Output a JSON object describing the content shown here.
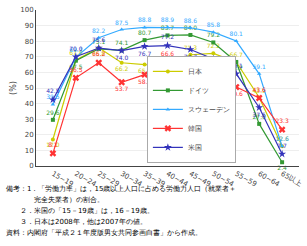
{
  "chart_data": {
    "type": "line",
    "y_label": "(%)",
    "categories": [
      "15~19",
      "20~24",
      "25~29",
      "30~34",
      "35~39",
      "40~44",
      "45~49",
      "50~54",
      "55~59",
      "60~64",
      "65以上"
    ],
    "series": [
      {
        "name": "日本",
        "color": "#cccc00",
        "marker": "circle",
        "values": [
          17.0,
          67.8,
          75.8,
          66.2,
          65.0,
          64.9,
          71.3,
          72.2,
          66.7,
          43.9,
          12.6
        ],
        "value_labels": [
          "17.0",
          "67.8",
          "75.8",
          "66.2",
          "65.0",
          "64.9",
          "71.3",
          "72.2",
          "66.7",
          "43.9",
          "12.6"
        ]
      },
      {
        "name": "ドイツ",
        "color": "#339933",
        "marker": "square",
        "values": [
          29.6,
          67.5,
          75.1,
          74.1,
          80.7,
          83.7,
          84.0,
          79.2,
          66.7,
          27.0,
          2.4
        ],
        "value_labels": [
          "29.6",
          "67.5",
          "75.1",
          "74.1",
          "80.7",
          "83.7",
          "84.0",
          "79.2",
          "66.7",
          "27.0",
          "2.4"
        ]
      },
      {
        "name": "スウェーデン",
        "color": "#33aaff",
        "marker": "triangle-up",
        "values": [
          39.5,
          69.7,
          82.2,
          87.5,
          88.8,
          88.9,
          88.6,
          85.8,
          80.1,
          59.1,
          12.6
        ],
        "value_labels": [
          "39.5",
          "69.7",
          "82.2",
          "87.5",
          "88.8",
          "88.9",
          "88.6",
          "85.8",
          "80.1",
          "59.1",
          "12.6"
        ]
      },
      {
        "name": "韓国",
        "color": "#ff3333",
        "marker": "x",
        "values": [
          8.1,
          56.5,
          66.2,
          53.7,
          58.6,
          66.6,
          65.0,
          59.3,
          50.6,
          43.6,
          23.3
        ],
        "value_labels": [
          "8.1",
          "56.5",
          "66.2",
          "53.7",
          "58.6",
          "66.6",
          "65.0",
          "59.3",
          "50.6",
          "43.6",
          "23.3"
        ]
      },
      {
        "name": "米国",
        "color": "#3333bb",
        "marker": "star",
        "values": [
          42.5,
          70.0,
          75.6,
          74.0,
          76.7,
          77.2,
          74.7,
          68.6,
          59.1,
          37.5,
          7.7
        ],
        "value_labels": [
          "42.5",
          "70.0",
          "75.6",
          "74.0",
          "76.7",
          "77.2",
          "74.7",
          "68.6",
          "59.1",
          "37.5",
          "7.7"
        ]
      }
    ],
    "ylim": [
      0,
      100
    ],
    "yticks": [
      0,
      10,
      20,
      30,
      40,
      50,
      60,
      70,
      80,
      90,
      100
    ],
    "grid": true,
    "data_labels": true,
    "legend": "lower right",
    "annotations": [
      "備考：1．「労働力率」は，15歳以上人口に占める労働力人口（就業者＋",
      "　　　　完全失業者）の割合。",
      "　　２．米国の「15－19歳」は，16－19歳。",
      "　　３．日本は2008年，他は2007年の値。",
      "資料：内閣府「平成２１年度版男女共同参画白書」から作成。"
    ]
  }
}
